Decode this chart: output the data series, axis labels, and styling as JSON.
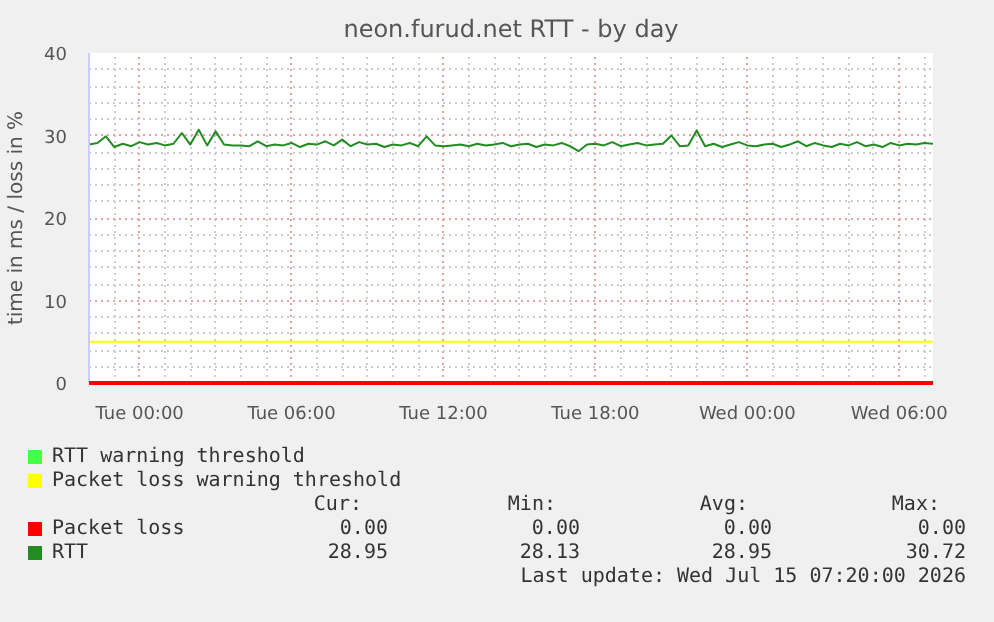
{
  "chart_data": {
    "type": "line",
    "title": "neon.furud.net RTT - by day",
    "ylabel": "time in ms / loss in %",
    "xlim": [
      "2026-07-13T22:00",
      "2026-07-15T07:20"
    ],
    "ylim": [
      0,
      40
    ],
    "xticks": [
      {
        "value": "2026-07-14T00:00",
        "label": "Tue 00:00"
      },
      {
        "value": "2026-07-14T06:00",
        "label": "Tue 06:00"
      },
      {
        "value": "2026-07-14T12:00",
        "label": "Tue 12:00"
      },
      {
        "value": "2026-07-14T18:00",
        "label": "Tue 18:00"
      },
      {
        "value": "2026-07-15T00:00",
        "label": "Wed 00:00"
      },
      {
        "value": "2026-07-15T06:00",
        "label": "Wed 06:00"
      }
    ],
    "yticks": [
      0,
      10,
      20,
      30,
      40
    ],
    "grid": true,
    "legend": "bottom",
    "marker": "none",
    "line_style": "solid",
    "series": [
      {
        "name": "RTT warning threshold",
        "color": "#44ff44"
      },
      {
        "name": "Packet loss warning threshold",
        "color": "#ffff00",
        "x": [
          "2026-07-13T22:00",
          "2026-07-15T07:20"
        ],
        "values": [
          5,
          5
        ]
      },
      {
        "name": "Packet loss",
        "color": "#ff0000",
        "x": [
          "2026-07-13T22:00",
          "2026-07-15T07:20"
        ],
        "values": [
          0,
          0
        ]
      },
      {
        "name": "RTT",
        "color": "#228b22",
        "x": [
          "2026-07-13T22:00",
          "2026-07-13T22:20",
          "2026-07-13T22:40",
          "2026-07-13T23:00",
          "2026-07-13T23:20",
          "2026-07-13T23:40",
          "2026-07-14T00:00",
          "2026-07-14T00:20",
          "2026-07-14T00:40",
          "2026-07-14T01:00",
          "2026-07-14T01:20",
          "2026-07-14T01:40",
          "2026-07-14T02:00",
          "2026-07-14T02:20",
          "2026-07-14T02:40",
          "2026-07-14T03:00",
          "2026-07-14T03:20",
          "2026-07-14T03:40",
          "2026-07-14T04:00",
          "2026-07-14T04:20",
          "2026-07-14T04:40",
          "2026-07-14T05:00",
          "2026-07-14T05:20",
          "2026-07-14T05:40",
          "2026-07-14T06:00",
          "2026-07-14T06:20",
          "2026-07-14T06:40",
          "2026-07-14T07:00",
          "2026-07-14T07:20",
          "2026-07-14T07:40",
          "2026-07-14T08:00",
          "2026-07-14T08:20",
          "2026-07-14T08:40",
          "2026-07-14T09:00",
          "2026-07-14T09:20",
          "2026-07-14T09:40",
          "2026-07-14T10:00",
          "2026-07-14T10:20",
          "2026-07-14T10:40",
          "2026-07-14T11:00",
          "2026-07-14T11:20",
          "2026-07-14T11:40",
          "2026-07-14T12:00",
          "2026-07-14T12:20",
          "2026-07-14T12:40",
          "2026-07-14T13:00",
          "2026-07-14T13:20",
          "2026-07-14T13:40",
          "2026-07-14T14:00",
          "2026-07-14T14:20",
          "2026-07-14T14:40",
          "2026-07-14T15:00",
          "2026-07-14T15:20",
          "2026-07-14T15:40",
          "2026-07-14T16:00",
          "2026-07-14T16:20",
          "2026-07-14T16:40",
          "2026-07-14T17:00",
          "2026-07-14T17:20",
          "2026-07-14T17:40",
          "2026-07-14T18:00",
          "2026-07-14T18:20",
          "2026-07-14T18:40",
          "2026-07-14T19:00",
          "2026-07-14T19:20",
          "2026-07-14T19:40",
          "2026-07-14T20:00",
          "2026-07-14T20:20",
          "2026-07-14T20:40",
          "2026-07-14T21:00",
          "2026-07-14T21:20",
          "2026-07-14T21:40",
          "2026-07-14T22:00",
          "2026-07-14T22:20",
          "2026-07-14T22:40",
          "2026-07-14T23:00",
          "2026-07-14T23:20",
          "2026-07-14T23:40",
          "2026-07-15T00:00",
          "2026-07-15T00:20",
          "2026-07-15T00:40",
          "2026-07-15T01:00",
          "2026-07-15T01:20",
          "2026-07-15T01:40",
          "2026-07-15T02:00",
          "2026-07-15T02:20",
          "2026-07-15T02:40",
          "2026-07-15T03:00",
          "2026-07-15T03:20",
          "2026-07-15T03:40",
          "2026-07-15T04:00",
          "2026-07-15T04:20",
          "2026-07-15T04:40",
          "2026-07-15T05:00",
          "2026-07-15T05:20",
          "2026-07-15T05:40",
          "2026-07-15T06:00",
          "2026-07-15T06:20",
          "2026-07-15T06:40",
          "2026-07-15T07:00",
          "2026-07-15T07:20"
        ],
        "values": [
          28.9,
          29.1,
          29.9,
          28.6,
          29.0,
          28.7,
          29.2,
          28.9,
          29.1,
          28.8,
          29.0,
          30.3,
          28.9,
          30.7,
          28.8,
          30.5,
          28.9,
          28.8,
          28.8,
          28.7,
          29.3,
          28.7,
          28.9,
          28.8,
          29.1,
          28.6,
          29.0,
          28.9,
          29.3,
          28.8,
          29.5,
          28.7,
          29.2,
          28.9,
          29.0,
          28.6,
          28.9,
          28.8,
          29.1,
          28.7,
          29.9,
          28.8,
          28.7,
          28.8,
          28.9,
          28.7,
          29.0,
          28.8,
          28.9,
          29.1,
          28.7,
          28.9,
          29.0,
          28.6,
          28.9,
          28.8,
          29.1,
          28.7,
          28.1,
          28.9,
          29.0,
          28.8,
          29.2,
          28.7,
          28.9,
          29.1,
          28.8,
          28.9,
          29.0,
          30.0,
          28.7,
          28.8,
          30.6,
          28.7,
          29.0,
          28.6,
          28.9,
          29.2,
          28.8,
          28.7,
          28.9,
          29.0,
          28.6,
          28.9,
          29.3,
          28.7,
          29.1,
          28.8,
          28.6,
          29.0,
          28.8,
          29.2,
          28.7,
          28.9,
          28.6,
          29.1,
          28.8,
          29.0,
          28.9,
          29.1,
          29.0
        ]
      }
    ],
    "annotations": [
      "Cur:",
      "Min:",
      "Avg:",
      "Max:",
      "0.00",
      "0.00",
      "0.00",
      "0.00",
      "28.95",
      "28.13",
      "28.95",
      "30.72",
      "Last update: Wed Jul 15 07:20:00 2026"
    ]
  }
}
